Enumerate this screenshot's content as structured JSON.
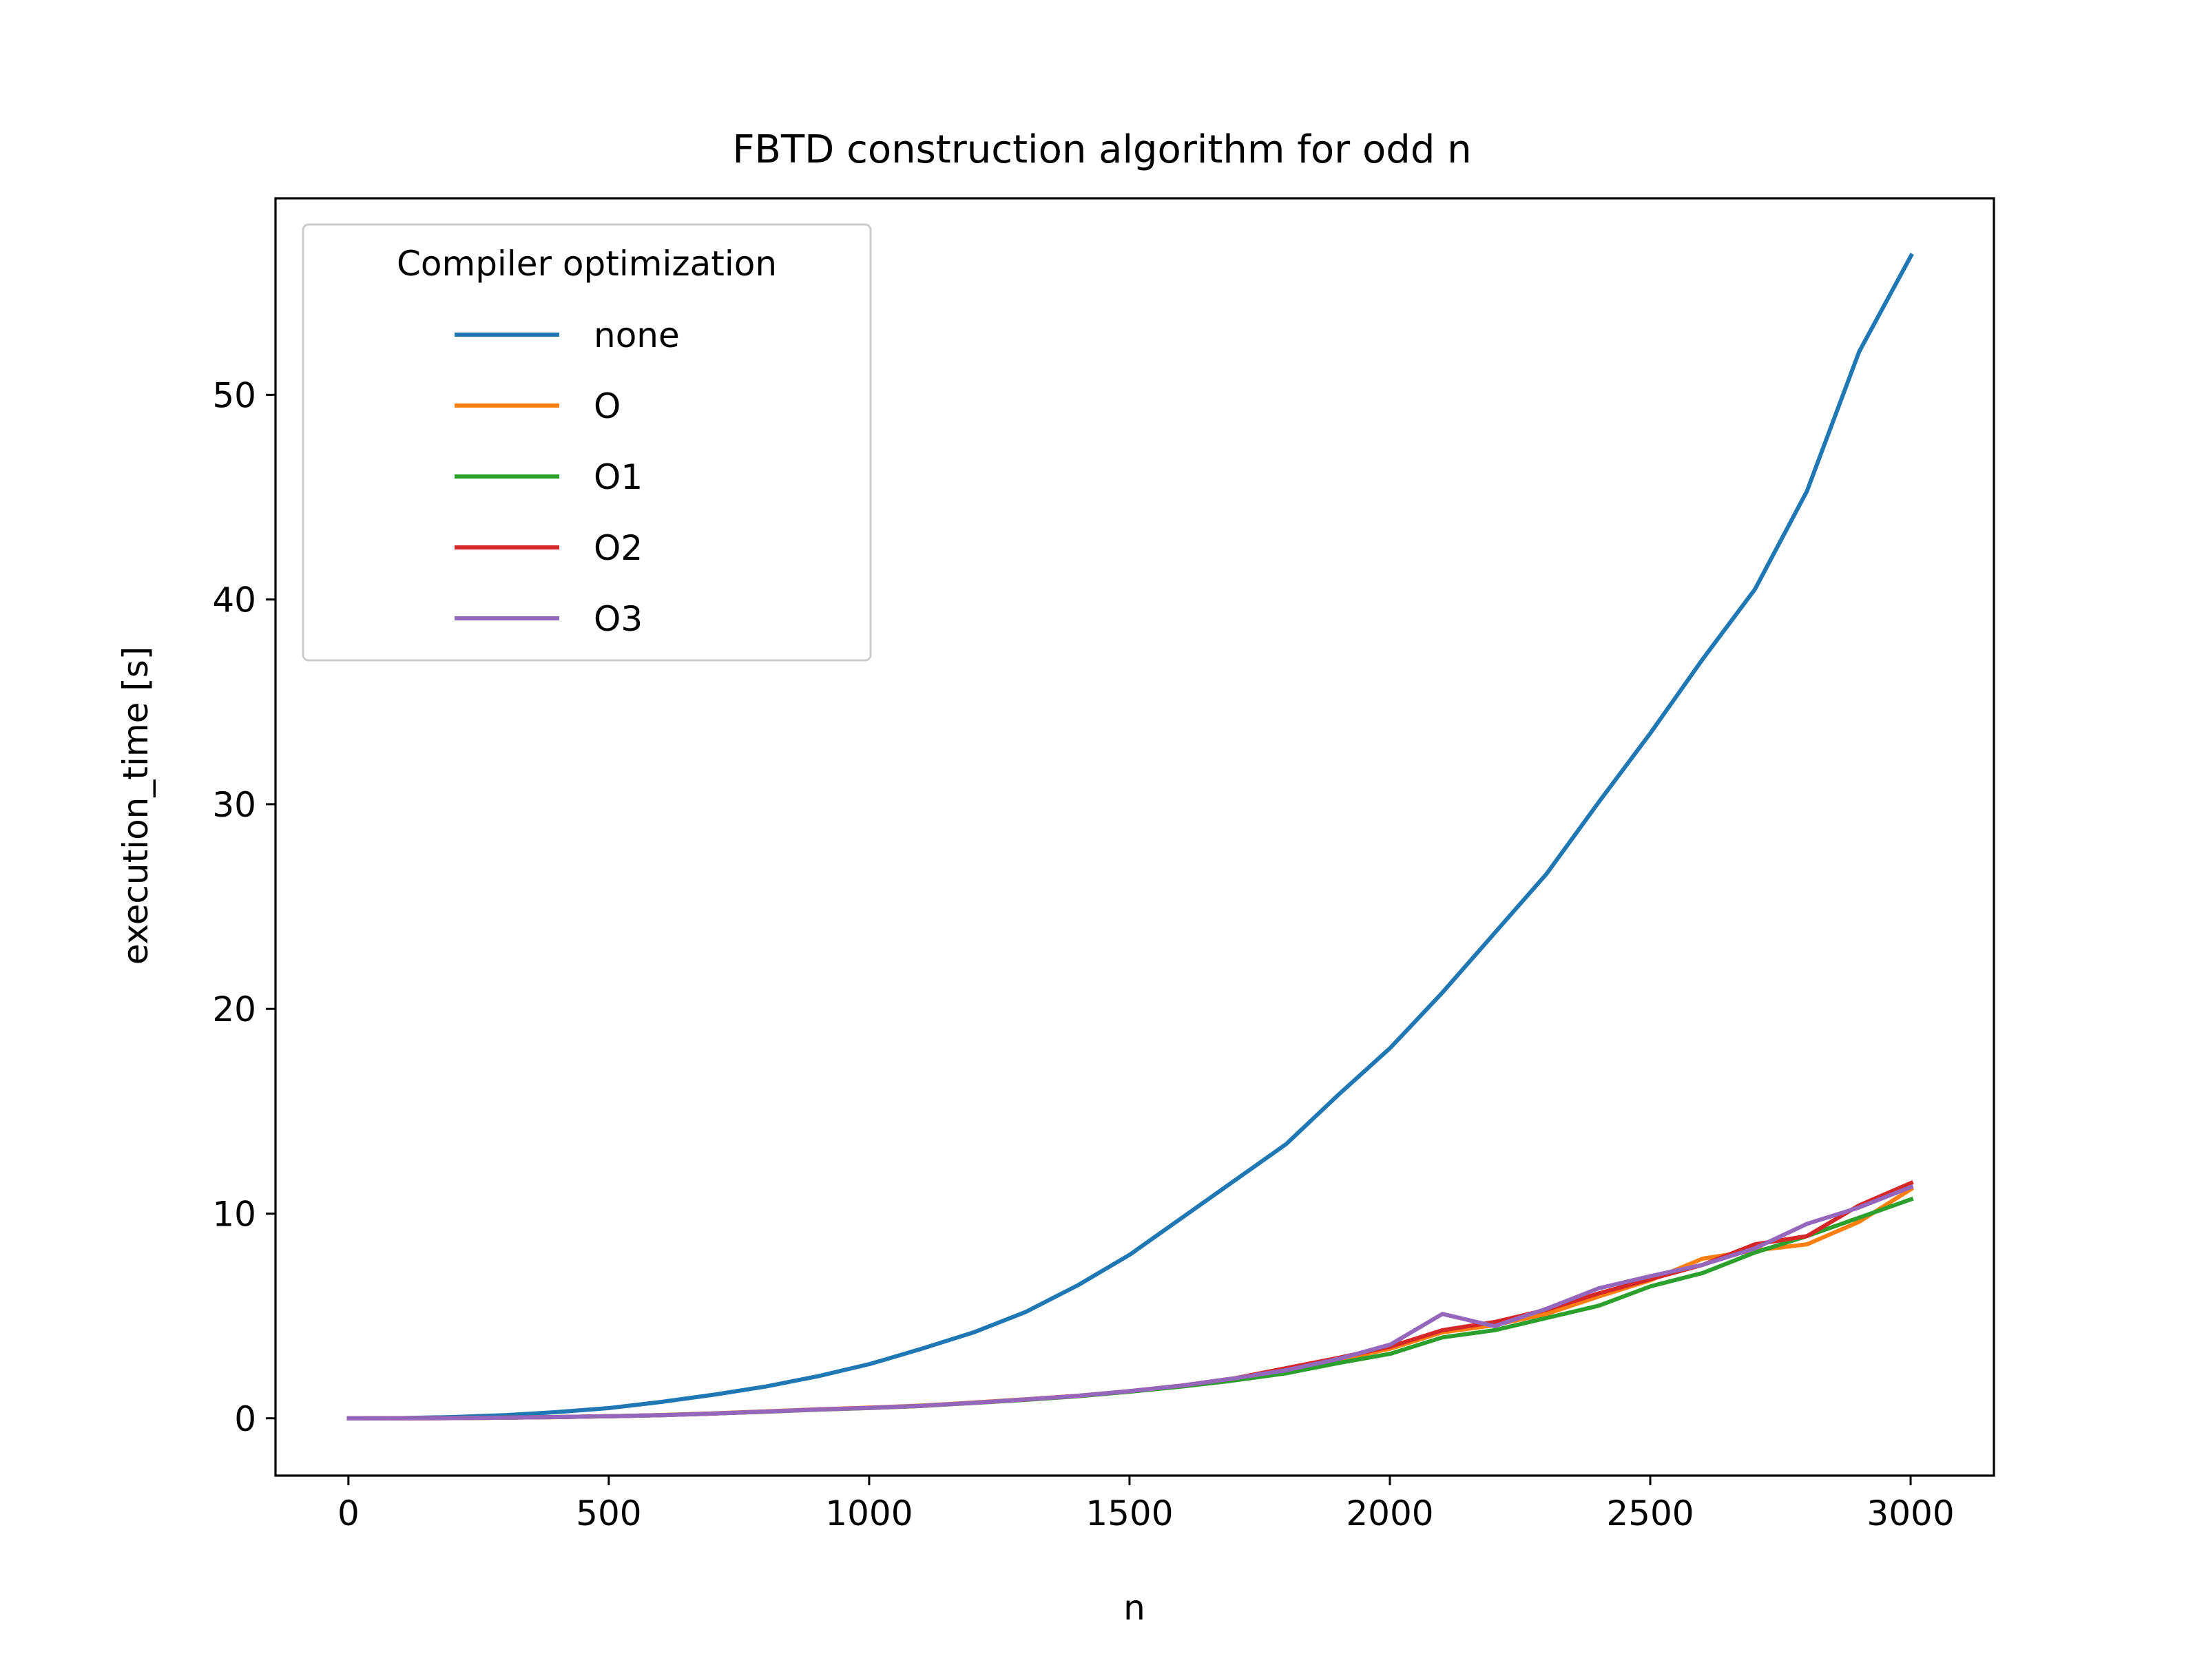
{
  "chart_data": {
    "type": "line",
    "title": "FBTD construction algorithm for odd n",
    "xlabel": "n",
    "ylabel": "execution_time [s]",
    "xlim": [
      -140,
      3160
    ],
    "ylim": [
      -2.8,
      59.6
    ],
    "xticks": [
      0,
      500,
      1000,
      1500,
      2000,
      2500,
      3000
    ],
    "yticks": [
      0,
      10,
      20,
      30,
      40,
      50
    ],
    "grid": false,
    "legend": {
      "title": "Compiler optimization",
      "placement": "top-left"
    },
    "x": [
      1,
      101,
      201,
      301,
      401,
      501,
      601,
      701,
      801,
      901,
      1001,
      1101,
      1201,
      1301,
      1401,
      1501,
      1601,
      1701,
      1801,
      1901,
      2001,
      2101,
      2201,
      2301,
      2401,
      2501,
      2601,
      2701,
      2801,
      2901,
      3001
    ],
    "series": [
      {
        "name": "none",
        "color": "#1f77b4",
        "values": [
          0.0,
          0.01,
          0.06,
          0.15,
          0.3,
          0.5,
          0.8,
          1.15,
          1.55,
          2.05,
          2.65,
          3.4,
          4.2,
          5.2,
          6.5,
          8.0,
          9.8,
          11.6,
          13.4,
          15.8,
          18.1,
          20.8,
          23.7,
          26.6,
          30.1,
          33.5,
          37.1,
          40.5,
          45.3,
          52.1,
          56.8
        ]
      },
      {
        "name": "O",
        "color": "#ff7f0e",
        "values": [
          0.0,
          0.0,
          0.01,
          0.03,
          0.06,
          0.1,
          0.16,
          0.24,
          0.34,
          0.44,
          0.52,
          0.62,
          0.77,
          0.93,
          1.1,
          1.32,
          1.6,
          1.95,
          2.4,
          2.85,
          3.4,
          4.2,
          4.55,
          5.1,
          5.95,
          6.75,
          7.8,
          8.2,
          8.5,
          9.6,
          11.2
        ]
      },
      {
        "name": "O1",
        "color": "#2ca02c",
        "values": [
          0.0,
          0.0,
          0.01,
          0.03,
          0.06,
          0.1,
          0.15,
          0.23,
          0.32,
          0.42,
          0.5,
          0.6,
          0.75,
          0.9,
          1.08,
          1.3,
          1.55,
          1.85,
          2.2,
          2.7,
          3.15,
          3.95,
          4.3,
          4.9,
          5.5,
          6.45,
          7.1,
          8.1,
          8.9,
          9.8,
          10.7
        ]
      },
      {
        "name": "O2",
        "color": "#d62728",
        "values": [
          0.0,
          0.0,
          0.01,
          0.03,
          0.06,
          0.1,
          0.15,
          0.23,
          0.33,
          0.43,
          0.51,
          0.61,
          0.76,
          0.92,
          1.1,
          1.33,
          1.6,
          1.95,
          2.45,
          2.95,
          3.5,
          4.3,
          4.7,
          5.3,
          6.1,
          6.8,
          7.5,
          8.5,
          8.9,
          10.4,
          11.5
        ]
      },
      {
        "name": "O3",
        "color": "#9467bd",
        "values": [
          0.0,
          0.0,
          0.01,
          0.03,
          0.06,
          0.1,
          0.15,
          0.23,
          0.33,
          0.43,
          0.51,
          0.61,
          0.76,
          0.92,
          1.1,
          1.33,
          1.6,
          1.95,
          2.35,
          2.9,
          3.6,
          5.1,
          4.5,
          5.35,
          6.35,
          6.95,
          7.5,
          8.3,
          9.5,
          10.3,
          11.3
        ]
      }
    ]
  }
}
